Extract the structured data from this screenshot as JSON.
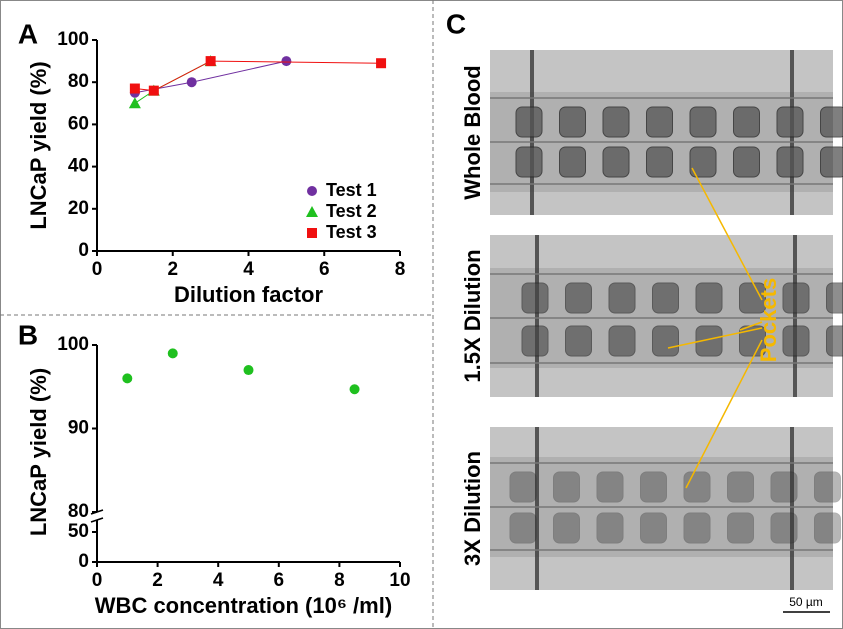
{
  "chart_data": [
    {
      "type": "line",
      "panel_label": "A",
      "xlabel": "Dilution factor",
      "ylabel": "LNCaP yield (%)",
      "xlim": [
        0,
        8
      ],
      "ylim": [
        0,
        100
      ],
      "xticks": [
        0,
        2,
        4,
        6,
        8
      ],
      "yticks": [
        0,
        20,
        40,
        60,
        80,
        100
      ],
      "legend": "lower right",
      "series": [
        {
          "name": "Test 1",
          "color": "#7030a0",
          "marker": "circle",
          "x": [
            1,
            2.5,
            5
          ],
          "values": [
            75,
            80,
            90
          ]
        },
        {
          "name": "Test 2",
          "color": "#1fc01f",
          "marker": "triangle",
          "x": [
            1,
            1.5,
            3
          ],
          "values": [
            70,
            76,
            90
          ]
        },
        {
          "name": "Test 3",
          "color": "#f01010",
          "marker": "square",
          "x": [
            1,
            1.5,
            3,
            7.5
          ],
          "values": [
            77,
            76,
            90,
            89
          ]
        }
      ]
    },
    {
      "type": "scatter",
      "panel_label": "B",
      "xlabel": "WBC concentration (10⁶ /ml)",
      "ylabel": "LNCaP yield (%)",
      "xlim": [
        0,
        10
      ],
      "ylim": [
        0,
        100
      ],
      "ybreak": [
        60,
        80
      ],
      "xticks": [
        0,
        2,
        4,
        6,
        8,
        10
      ],
      "yticks": [
        0,
        50,
        80,
        90,
        100
      ],
      "color": "#1fc01f",
      "x": [
        1,
        2.5,
        5,
        8.5
      ],
      "values": [
        96,
        99,
        97,
        94.7
      ]
    }
  ],
  "panel_c": {
    "panel_label": "C",
    "images": [
      "Whole Blood",
      "1.5X Dilution",
      "3X Dilution"
    ],
    "annotation": "Pockets",
    "scale_bar": "50 µm"
  }
}
